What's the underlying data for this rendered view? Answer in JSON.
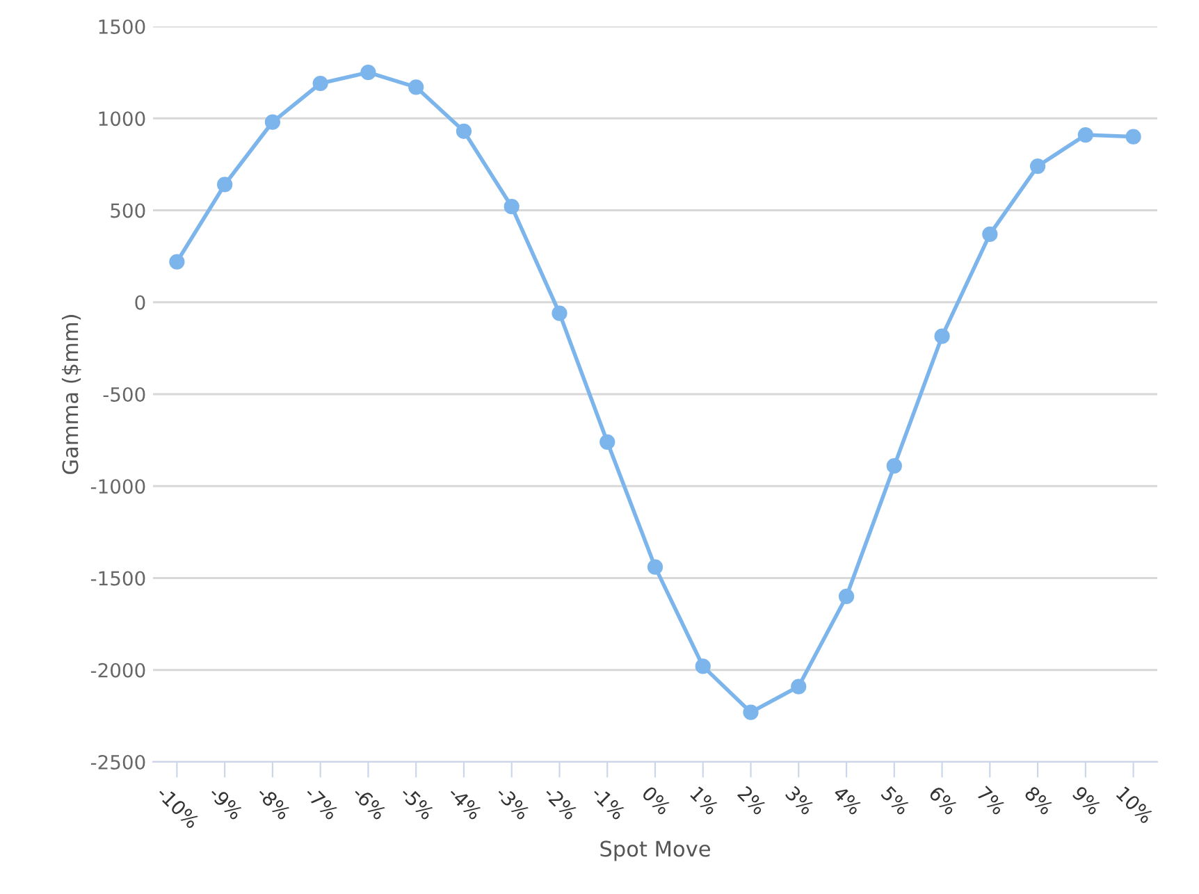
{
  "chart_data": {
    "type": "line",
    "xlabel": "Spot Move",
    "ylabel": "Gamma ($mm)",
    "categories": [
      "-10%",
      "-9%",
      "-8%",
      "-7%",
      "-6%",
      "-5%",
      "-4%",
      "-3%",
      "-2%",
      "-1%",
      "0%",
      "1%",
      "2%",
      "3%",
      "4%",
      "5%",
      "6%",
      "7%",
      "8%",
      "9%",
      "10%"
    ],
    "series": [
      {
        "color": "#7cb5ec",
        "values": [
          220,
          640,
          980,
          1190,
          1250,
          1170,
          930,
          520,
          -60,
          -760,
          -1440,
          -1980,
          -2230,
          -2090,
          -1600,
          -890,
          -185,
          370,
          740,
          910,
          900
        ]
      }
    ],
    "ylim": [
      -2500,
      1500
    ],
    "yticks": [
      -2500,
      -2000,
      -1500,
      -1000,
      -500,
      0,
      500,
      1000,
      1500
    ],
    "grid": "y",
    "marker": "circle",
    "line_style": "solid"
  }
}
